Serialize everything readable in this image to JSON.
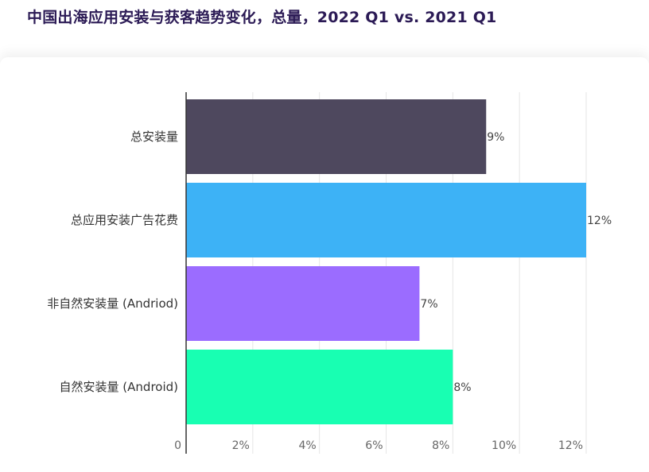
{
  "title": "中国出海应用安装与获客趋势变化，总量，2022 Q1 vs. 2021 Q1",
  "chart_data": {
    "type": "bar",
    "orientation": "horizontal",
    "categories": [
      "总安装量",
      "总应用安装广告花费",
      "非自然安装量 (Andriod)",
      "自然安装量 (Android)"
    ],
    "values": [
      9,
      12,
      7,
      8
    ],
    "value_labels": [
      "9%",
      "12%",
      "7%",
      "8%"
    ],
    "colors": [
      "#4e485e",
      "#3db2f6",
      "#9b6cff",
      "#18ffb2"
    ],
    "xlim": [
      0,
      12
    ],
    "xticks": [
      0,
      2,
      4,
      6,
      8,
      10,
      12
    ],
    "xtick_labels": [
      "0",
      "2%",
      "4%",
      "6%",
      "8%",
      "10%",
      "12%"
    ],
    "grid": true
  }
}
